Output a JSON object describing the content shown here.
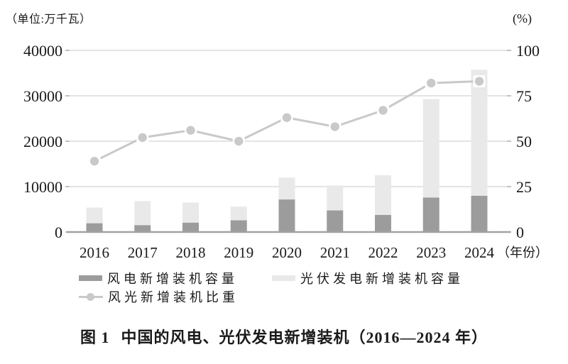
{
  "page": {
    "unit_label": "（单位:万千瓦）",
    "right_axis_unit": "(%)",
    "x_axis_label": "（年份）",
    "caption": {
      "figure_no": "图 1",
      "title": "中国的风电、光伏发电新增装机（2016—2024 年）"
    }
  },
  "legend": {
    "items": [
      {
        "label": "风电新增装机容量",
        "swatch": "bar",
        "color": "#9c9c9c"
      },
      {
        "label": "光伏发电新增装机容量",
        "swatch": "bar",
        "color": "#e9e9e9"
      },
      {
        "label": "风光新增装机比重",
        "swatch": "line-marker",
        "color": "#c9c9c9"
      }
    ]
  },
  "chart_data": {
    "type": "bar",
    "subtype": "stacked-bars-with-right-axis-line",
    "title": "图 1 中国的风电、光伏发电新增装机（2016—2024 年）",
    "categories": [
      "2016",
      "2017",
      "2018",
      "2019",
      "2020",
      "2021",
      "2022",
      "2023",
      "2024"
    ],
    "series": [
      {
        "name": "风电新增装机容量",
        "type": "bar",
        "stack": "capacity",
        "axis": "left",
        "color": "#9c9c9c",
        "values": [
          1930,
          1503,
          2059,
          2574,
          7167,
          4757,
          3763,
          7590,
          7982
        ]
      },
      {
        "name": "光伏发电新增装机容量",
        "type": "bar",
        "stack": "capacity",
        "axis": "left",
        "color": "#e9e9e9",
        "values": [
          3454,
          5306,
          4426,
          3011,
          4820,
          5488,
          8741,
          21688,
          27757
        ]
      },
      {
        "name": "风光新增装机比重",
        "type": "line",
        "axis": "right",
        "color": "#c9c9c9",
        "marker": "circle",
        "values": [
          39,
          52,
          56,
          50,
          63,
          58,
          67,
          82,
          83
        ]
      }
    ],
    "left_axis": {
      "title": "（单位:万千瓦）",
      "ticks": [
        0,
        10000,
        20000,
        30000,
        40000
      ],
      "range": [
        0,
        40000
      ]
    },
    "right_axis": {
      "title": "(%)",
      "ticks": [
        0,
        25,
        50,
        75,
        100
      ],
      "range": [
        0,
        100
      ]
    },
    "x_axis": {
      "title": "（年份）"
    },
    "grid": true,
    "legend_position": "bottom"
  },
  "colors": {
    "background": "#ffffff",
    "text": "#1a1a1a",
    "gridline": "#c8c8c8",
    "axis_line": "#a2a2a2",
    "wind_bar": "#9c9c9c",
    "solar_bar": "#e9e9e9",
    "share_line": "#c9c9c9",
    "marker_halo": "#ffffff"
  }
}
